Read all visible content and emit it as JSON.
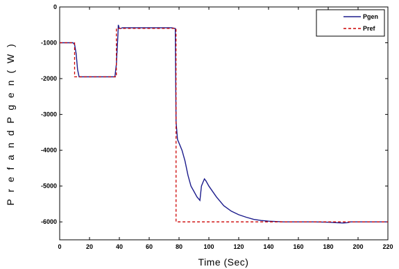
{
  "chart_data": {
    "type": "line",
    "title": "",
    "xlabel": "Time (Sec)",
    "ylabel": "P r e f  a n d  P g e n ( W )",
    "xlim": [
      0,
      220
    ],
    "ylim": [
      -6500,
      0
    ],
    "xticks": [
      0,
      20,
      40,
      60,
      80,
      100,
      120,
      140,
      160,
      180,
      200,
      220
    ],
    "xtick_labels": [
      "0",
      "20",
      "40",
      "60",
      "80",
      "100",
      "120",
      "140",
      "160",
      "180",
      "200",
      "220"
    ],
    "yticks": [
      0,
      -1000,
      -2000,
      -3000,
      -4000,
      -5000,
      -6000
    ],
    "ytick_labels": [
      "0",
      "-1000",
      "-2000",
      "-3000",
      "-4000",
      "-5000",
      "-6000"
    ],
    "legend_position": "top-right",
    "grid": false,
    "series": [
      {
        "name": "Pgen",
        "color": "#1c1c8c",
        "style": "solid",
        "x": [
          0,
          9,
          10,
          11,
          12,
          13,
          37,
          38,
          39,
          39.3,
          40,
          41,
          42,
          75,
          77.5,
          78,
          79,
          80,
          82,
          84,
          86,
          88,
          90,
          92,
          94,
          95,
          96,
          97,
          98,
          100,
          105,
          110,
          115,
          120,
          125,
          130,
          135,
          140,
          145,
          150,
          160,
          170,
          180,
          185,
          190,
          193,
          195,
          200,
          210,
          220
        ],
        "y": [
          -1000,
          -1000,
          -1050,
          -1300,
          -1750,
          -1950,
          -1950,
          -1600,
          -800,
          -500,
          -600,
          -600,
          -580,
          -580,
          -600,
          -3200,
          -3700,
          -3800,
          -4000,
          -4300,
          -4700,
          -5000,
          -5150,
          -5300,
          -5400,
          -5000,
          -4900,
          -4800,
          -4850,
          -5000,
          -5300,
          -5550,
          -5700,
          -5800,
          -5870,
          -5930,
          -5960,
          -5980,
          -5990,
          -6000,
          -6000,
          -6000,
          -6010,
          -6020,
          -6030,
          -6020,
          -6000,
          -6000,
          -6000,
          -6000
        ]
      },
      {
        "name": "Pref",
        "color": "#cc0000",
        "style": "dashed",
        "x": [
          0,
          10,
          10,
          38,
          38,
          78,
          78,
          220
        ],
        "y": [
          -1000,
          -1000,
          -1950,
          -1950,
          -600,
          -600,
          -6000,
          -6000
        ]
      }
    ]
  }
}
